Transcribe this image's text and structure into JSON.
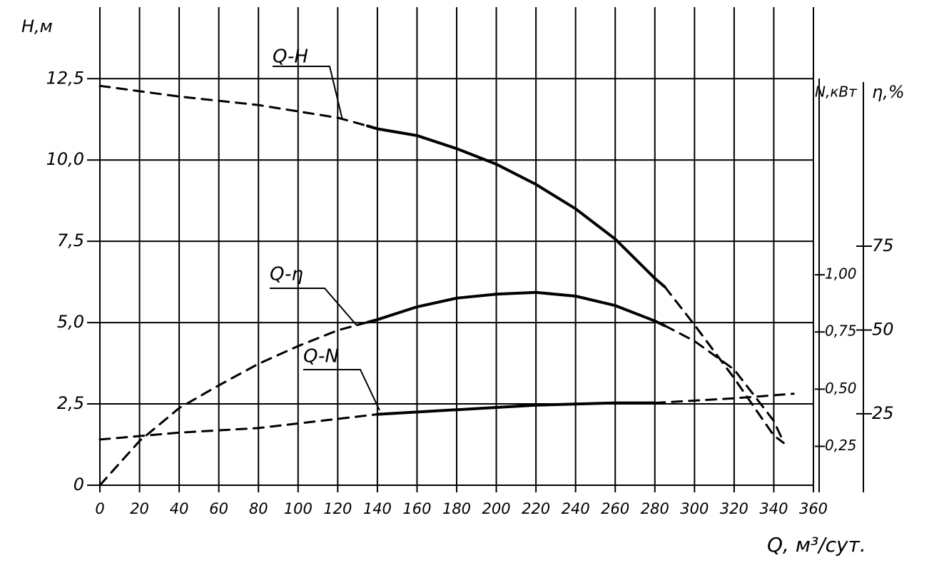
{
  "chart_data": {
    "type": "line",
    "xlabel": "Q, м³/сут.",
    "ylabel": "H,м",
    "y2label": "N,кВт",
    "y3label": "η,%",
    "color": "#000000",
    "grid": true,
    "xlim": [
      0,
      360
    ],
    "xticks": [
      0,
      20,
      40,
      60,
      80,
      100,
      120,
      140,
      160,
      180,
      200,
      220,
      240,
      260,
      280,
      300,
      320,
      340,
      360
    ],
    "ylim": [
      0,
      14.7
    ],
    "yticks": [
      0,
      {
        "value": 2.5,
        "label": "2,5"
      },
      {
        "value": 5.0,
        "label": "5,0"
      },
      {
        "value": 7.5,
        "label": "7,5"
      },
      {
        "value": 10.0,
        "label": "10,0"
      },
      {
        "value": 12.5,
        "label": "12,5"
      }
    ],
    "y2lim": [
      0.08,
      2.17
    ],
    "y2ticks": [
      {
        "value": 0.25,
        "label": "0,25"
      },
      {
        "value": 0.5,
        "label": "0,50"
      },
      {
        "value": 0.75,
        "label": "0,75"
      },
      {
        "value": 1.0,
        "label": "1,00"
      }
    ],
    "y3lim": [
      3.7,
      146.3
    ],
    "y3ticks": [
      25,
      50,
      75
    ],
    "series": [
      {
        "name": "Q-H",
        "axis": "y",
        "segments": [
          {
            "style": "dashed",
            "x": [
              0,
              40,
              80,
              120,
              135
            ],
            "values": [
              12.28,
              11.95,
              11.69,
              11.3,
              11.05
            ]
          },
          {
            "style": "solid",
            "x": [
              135,
              140,
              160,
              180,
              200,
              220,
              240,
              260,
              280,
              285
            ],
            "values": [
              11.05,
              10.96,
              10.75,
              10.35,
              9.87,
              9.25,
              8.5,
              7.57,
              6.36,
              6.1
            ]
          },
          {
            "style": "dashed",
            "x": [
              285,
              300,
              320,
              340,
              345
            ],
            "values": [
              6.1,
              4.93,
              3.29,
              1.53,
              1.3
            ]
          }
        ]
      },
      {
        "name": "Q-η",
        "axis": "y3",
        "segments": [
          {
            "style": "dashed",
            "x": [
              0,
              20,
              40,
              60,
              80,
              100,
              120,
              135
            ],
            "values": [
              3.7,
              16.9,
              26.7,
              33.5,
              39.9,
              45.2,
              49.9,
              52.3
            ]
          },
          {
            "style": "solid",
            "x": [
              135,
              140,
              160,
              180,
              200,
              220,
              240,
              260,
              280,
              285
            ],
            "values": [
              52.3,
              53.1,
              56.9,
              59.5,
              60.7,
              61.2,
              60.1,
              57.3,
              52.7,
              51.3
            ]
          },
          {
            "style": "dashed",
            "x": [
              285,
              300,
              320,
              340,
              345
            ],
            "values": [
              51.3,
              46.7,
              38.2,
              22.9,
              16.5
            ]
          }
        ]
      },
      {
        "name": "Q-N",
        "axis": "y2",
        "segments": [
          {
            "style": "dashed",
            "x": [
              0,
              40,
              80,
              120,
              140
            ],
            "values": [
              0.28,
              0.31,
              0.33,
              0.37,
              0.39
            ]
          },
          {
            "style": "solid",
            "x": [
              140,
              180,
              220,
              260,
              280
            ],
            "values": [
              0.39,
              0.41,
              0.43,
              0.44,
              0.44
            ]
          },
          {
            "style": "dashed",
            "x": [
              280,
              320,
              350
            ],
            "values": [
              0.44,
              0.46,
              0.48
            ]
          }
        ]
      }
    ]
  }
}
